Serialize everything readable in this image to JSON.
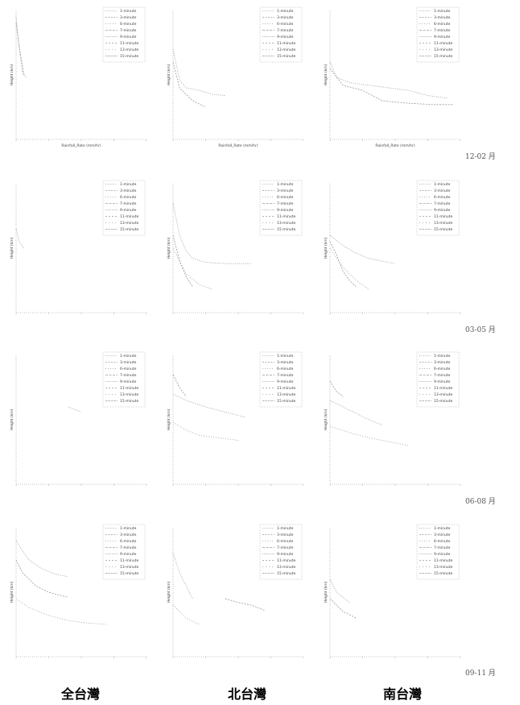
{
  "columns": [
    {
      "label": "全台灣"
    },
    {
      "label": "北台灣"
    },
    {
      "label": "南台灣"
    }
  ],
  "rows": [
    {
      "label": "12-02 月"
    },
    {
      "label": "03-05 月"
    },
    {
      "label": "06-08 月"
    },
    {
      "label": "09-11 月"
    }
  ],
  "legend_items": [
    "1-minute",
    "3-minute",
    "6-minute",
    "7-minute",
    "9-minute",
    "11-minute",
    "13-minute",
    "15-minute"
  ],
  "colors": {
    "series": "#9a9a9a",
    "axis": "#b0b0b0",
    "legend_border": "#aaaaaa",
    "text": "#444444"
  },
  "chart_data": [
    {
      "type": "line",
      "row": 0,
      "col": 0,
      "xlabel": "Rainfall_Rate (mm/hr)",
      "ylabel": "Height (km)",
      "xlim": [
        0,
        20
      ],
      "ylim": [
        0,
        10
      ],
      "legend_placement": "top-right",
      "series": [
        {
          "name": "1-minute",
          "x": [
            0,
            0.5,
            1,
            1.5
          ],
          "y": [
            9.5,
            7.0,
            5.2,
            4.8
          ]
        },
        {
          "name": "3-minute",
          "x": [
            0,
            0.6,
            1.2
          ],
          "y": [
            9.0,
            6.8,
            5.0
          ]
        }
      ]
    },
    {
      "type": "line",
      "row": 0,
      "col": 1,
      "xlabel": "Rainfall_Rate (mm/hr)",
      "ylabel": "Height (km)",
      "xlim": [
        0,
        20
      ],
      "ylim": [
        0,
        10
      ],
      "legend_placement": "top-right",
      "series": [
        {
          "name": "1-minute",
          "x": [
            0,
            1,
            2,
            4,
            6,
            8
          ],
          "y": [
            7.0,
            4.6,
            4.0,
            3.8,
            3.5,
            3.4
          ]
        },
        {
          "name": "3-minute",
          "x": [
            0,
            1,
            3,
            5
          ],
          "y": [
            6.0,
            4.0,
            3.0,
            2.5
          ]
        }
      ]
    },
    {
      "type": "line",
      "row": 0,
      "col": 2,
      "xlabel": "Rainfall_Rate (mm/hr)",
      "ylabel": "Height (km)",
      "xlim": [
        0,
        20
      ],
      "ylim": [
        0,
        10
      ],
      "legend_placement": "top-right",
      "series": [
        {
          "name": "1-minute",
          "x": [
            0,
            1,
            3,
            6,
            9,
            12,
            15,
            18
          ],
          "y": [
            6.0,
            4.8,
            4.4,
            4.2,
            4.0,
            3.8,
            3.4,
            3.2
          ]
        },
        {
          "name": "3-minute",
          "x": [
            0,
            2,
            5,
            8,
            12,
            16,
            19
          ],
          "y": [
            5.5,
            4.2,
            3.8,
            3.0,
            2.8,
            2.7,
            2.7
          ]
        }
      ]
    },
    {
      "type": "line",
      "row": 1,
      "col": 0,
      "xlabel": "",
      "ylabel": "Height (km)",
      "xlim": [
        0,
        20
      ],
      "ylim": [
        0,
        10
      ],
      "legend_placement": "top-right",
      "series": [
        {
          "name": "1-minute",
          "x": [
            0,
            0.5,
            1.2
          ],
          "y": [
            6.5,
            5.5,
            5.0
          ]
        }
      ]
    },
    {
      "type": "line",
      "row": 1,
      "col": 1,
      "xlabel": "",
      "ylabel": "Height (km)",
      "xlim": [
        0,
        20
      ],
      "ylim": [
        0,
        10
      ],
      "legend_placement": "top-right",
      "series": [
        {
          "name": "1-minute",
          "x": [
            0,
            1,
            2,
            3,
            5,
            8,
            12
          ],
          "y": [
            8.5,
            6.0,
            4.8,
            4.2,
            3.9,
            3.8,
            3.8
          ]
        },
        {
          "name": "3-minute",
          "x": [
            0,
            1,
            2,
            3
          ],
          "y": [
            6.0,
            4.0,
            2.8,
            2.0
          ]
        },
        {
          "name": "6-minute",
          "x": [
            0,
            2,
            4,
            6
          ],
          "y": [
            5.0,
            3.0,
            2.2,
            1.8
          ]
        }
      ]
    },
    {
      "type": "line",
      "row": 1,
      "col": 2,
      "xlabel": "",
      "ylabel": "Height (km)",
      "xlim": [
        0,
        20
      ],
      "ylim": [
        0,
        10
      ],
      "legend_placement": "top-right",
      "series": [
        {
          "name": "1-minute",
          "x": [
            0,
            2,
            4,
            6,
            8,
            10
          ],
          "y": [
            6.0,
            5.2,
            4.6,
            4.2,
            4.0,
            3.8
          ]
        },
        {
          "name": "3-minute",
          "x": [
            0,
            1,
            2,
            3,
            4
          ],
          "y": [
            5.5,
            4.5,
            3.2,
            2.5,
            2.0
          ]
        },
        {
          "name": "6-minute",
          "x": [
            0,
            2,
            4,
            6
          ],
          "y": [
            5.0,
            3.5,
            2.5,
            1.8
          ]
        }
      ]
    },
    {
      "type": "line",
      "row": 2,
      "col": 0,
      "xlabel": "",
      "ylabel": "Height (km)",
      "xlim": [
        0,
        20
      ],
      "ylim": [
        0,
        10
      ],
      "legend_placement": "top-right",
      "series": [
        {
          "name": "1-minute",
          "x": [
            8,
            10
          ],
          "y": [
            6.0,
            5.6
          ]
        }
      ]
    },
    {
      "type": "line",
      "row": 2,
      "col": 1,
      "xlabel": "",
      "ylabel": "Height (km)",
      "xlim": [
        0,
        20
      ],
      "ylim": [
        0,
        10
      ],
      "legend_placement": "top-right",
      "series": [
        {
          "name": "1-minute",
          "x": [
            0,
            2,
            5,
            8,
            11
          ],
          "y": [
            7.0,
            6.5,
            6.0,
            5.6,
            5.2
          ]
        },
        {
          "name": "3-minute",
          "x": [
            0,
            1,
            2
          ],
          "y": [
            8.5,
            7.5,
            6.8
          ]
        },
        {
          "name": "6-minute",
          "x": [
            0,
            2,
            4,
            7,
            10
          ],
          "y": [
            4.8,
            4.2,
            3.8,
            3.6,
            3.4
          ]
        }
      ]
    },
    {
      "type": "line",
      "row": 2,
      "col": 2,
      "xlabel": "",
      "ylabel": "Height (km)",
      "xlim": [
        0,
        20
      ],
      "ylim": [
        0,
        10
      ],
      "legend_placement": "top-right",
      "series": [
        {
          "name": "1-minute",
          "x": [
            0,
            2,
            4,
            6,
            8
          ],
          "y": [
            6.5,
            6.0,
            5.5,
            5.0,
            4.6
          ]
        },
        {
          "name": "3-minute",
          "x": [
            0,
            1,
            2
          ],
          "y": [
            8.0,
            7.2,
            6.8
          ]
        },
        {
          "name": "6-minute",
          "x": [
            0,
            3,
            6,
            9,
            12
          ],
          "y": [
            4.5,
            4.0,
            3.6,
            3.3,
            3.0
          ]
        }
      ]
    },
    {
      "type": "line",
      "row": 3,
      "col": 0,
      "xlabel": "",
      "ylabel": "Height (km)",
      "xlim": [
        0,
        20
      ],
      "ylim": [
        0,
        10
      ],
      "legend_placement": "top-right",
      "series": [
        {
          "name": "1-minute",
          "x": [
            0,
            1,
            2,
            4,
            6,
            8
          ],
          "y": [
            9.0,
            8.2,
            7.5,
            6.8,
            6.4,
            6.2
          ]
        },
        {
          "name": "3-minute",
          "x": [
            0,
            1,
            3,
            5,
            8
          ],
          "y": [
            7.5,
            6.5,
            5.5,
            5.0,
            4.6
          ]
        },
        {
          "name": "6-minute",
          "x": [
            0,
            2,
            5,
            8,
            11,
            14
          ],
          "y": [
            4.5,
            3.8,
            3.2,
            2.8,
            2.6,
            2.5
          ]
        }
      ]
    },
    {
      "type": "line",
      "row": 3,
      "col": 1,
      "xlabel": "",
      "ylabel": "Height (km)",
      "xlim": [
        0,
        20
      ],
      "ylim": [
        0,
        10
      ],
      "legend_placement": "top-right",
      "series": [
        {
          "name": "1-minute",
          "x": [
            0,
            1,
            2,
            3
          ],
          "y": [
            8.0,
            6.5,
            5.5,
            4.5
          ]
        },
        {
          "name": "3-minute",
          "x": [
            8,
            10,
            12,
            14
          ],
          "y": [
            4.5,
            4.2,
            4.0,
            3.6
          ]
        },
        {
          "name": "6-minute",
          "x": [
            0,
            2,
            4
          ],
          "y": [
            4.0,
            3.0,
            2.5
          ]
        }
      ]
    },
    {
      "type": "line",
      "row": 3,
      "col": 2,
      "xlabel": "",
      "ylabel": "Height (km)",
      "xlim": [
        0,
        20
      ],
      "ylim": [
        0,
        10
      ],
      "legend_placement": "top-right",
      "series": [
        {
          "name": "1-minute",
          "x": [
            0,
            1,
            2,
            3
          ],
          "y": [
            6.0,
            5.0,
            4.6,
            4.2
          ]
        },
        {
          "name": "3-minute",
          "x": [
            0,
            2,
            4
          ],
          "y": [
            4.5,
            3.5,
            3.0
          ]
        }
      ]
    }
  ]
}
